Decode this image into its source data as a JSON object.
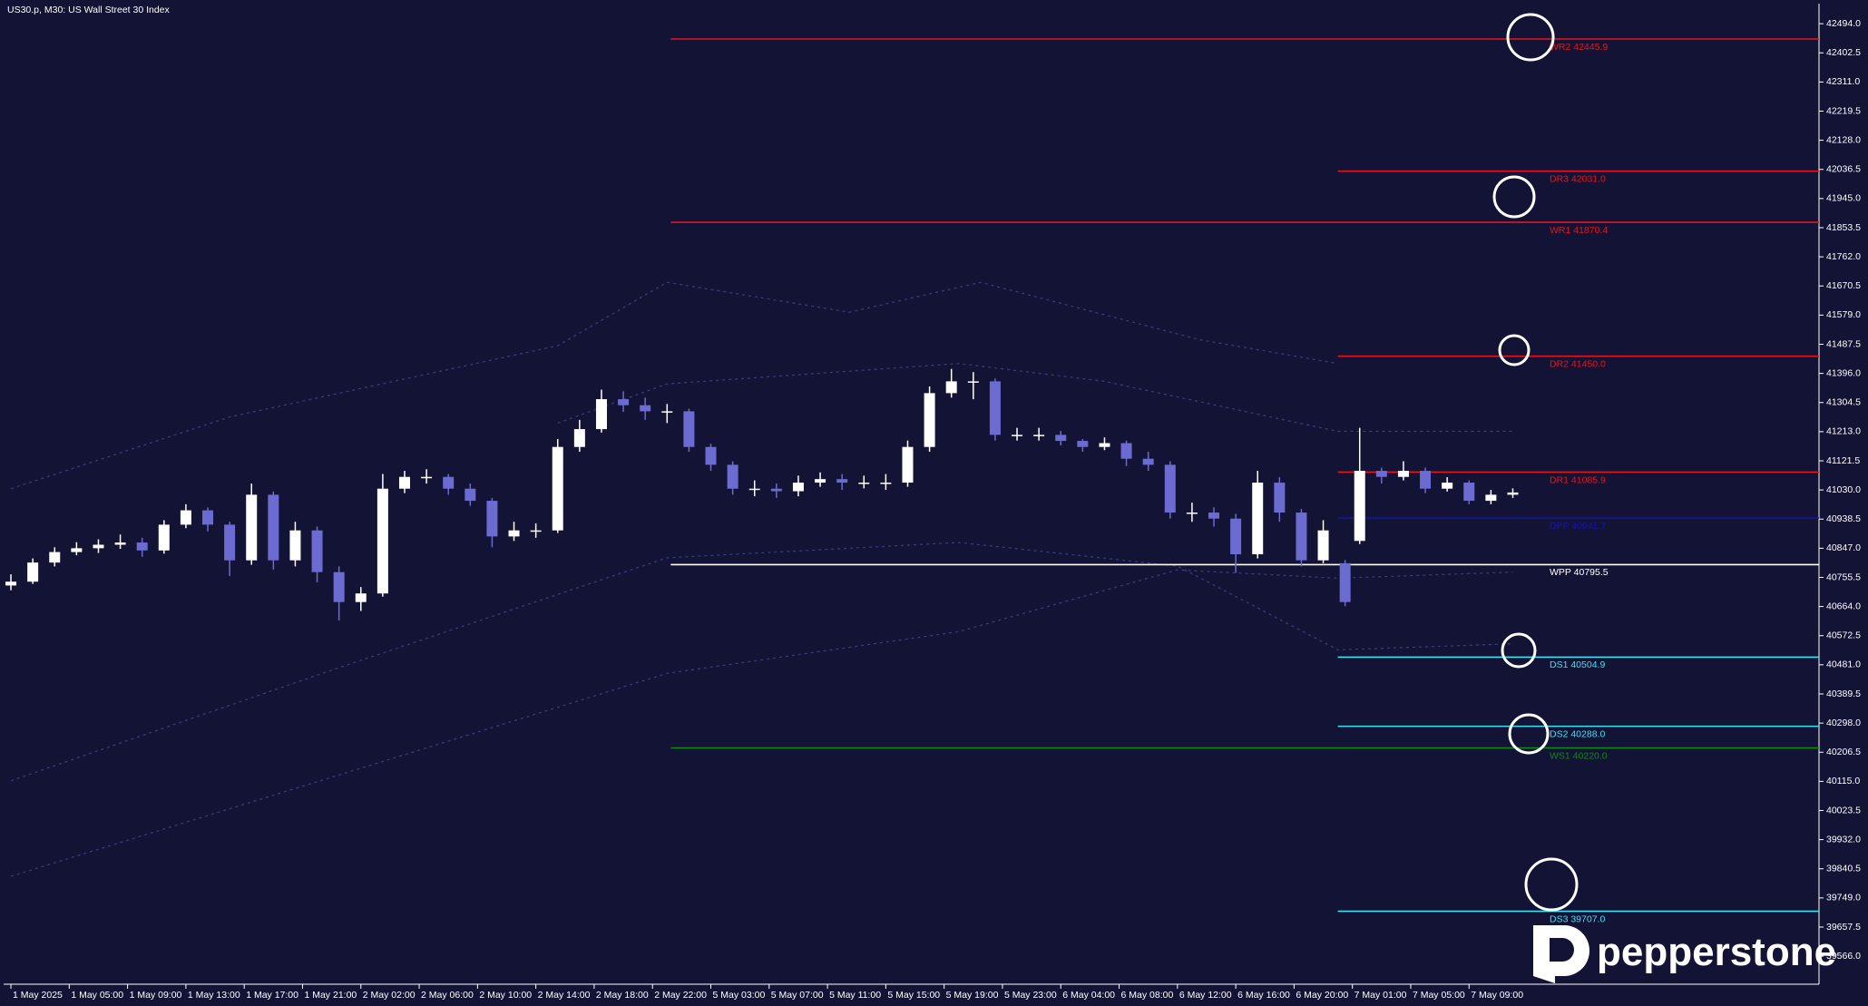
{
  "chart_data": {
    "type": "candlestick",
    "title": "US30.p, M30:  US Wall Street 30 Index",
    "x": [
      0,
      3,
      6,
      9,
      12,
      15,
      18,
      21,
      24,
      27,
      30,
      33,
      36,
      39,
      42,
      45,
      48,
      51,
      54,
      57,
      60,
      63,
      66,
      69,
      72,
      75,
      78,
      81,
      84,
      87,
      90,
      93,
      96,
      99,
      102,
      105,
      108,
      111,
      114,
      117,
      120,
      123,
      126,
      129,
      132,
      135,
      138,
      141,
      144,
      147,
      150,
      153,
      156,
      159,
      162,
      165,
      168,
      171,
      174,
      177,
      180,
      183,
      185,
      188,
      191,
      194,
      197,
      200,
      203,
      206
    ],
    "open": [
      40730,
      40742,
      40802,
      40835,
      40847,
      40858,
      40865,
      40840,
      40921,
      40966,
      40921,
      40809,
      41015,
      40809,
      40903,
      40772,
      40678,
      40705,
      41034,
      41071,
      41071,
      41034,
      40996,
      40884,
      40903,
      40903,
      41165,
      41221,
      41315,
      41296,
      41277,
      41277,
      41165,
      41109,
      41034,
      41034,
      41026,
      41053,
      41064,
      41053,
      41053,
      41053,
      41165,
      41334,
      41371,
      41371,
      41203,
      41203,
      41203,
      41184,
      41165,
      41177,
      41128,
      41109,
      40959,
      40959,
      40940,
      40828,
      41053,
      40959,
      40809,
      40800,
      40870,
      41090,
      41071,
      41090,
      41034,
      41053,
      40996,
      41015
    ],
    "high": [
      40765,
      40815,
      40850,
      40866,
      40875,
      40890,
      40880,
      40935,
      40985,
      40975,
      40930,
      41050,
      41025,
      40930,
      40915,
      40790,
      40725,
      41080,
      41090,
      41095,
      41080,
      41050,
      41005,
      40930,
      40925,
      41190,
      41250,
      41345,
      41340,
      41320,
      41300,
      41285,
      41175,
      41120,
      41060,
      41050,
      41075,
      41085,
      41080,
      41075,
      41080,
      41185,
      41355,
      41410,
      41400,
      41380,
      41225,
      41225,
      41215,
      41190,
      41195,
      41185,
      41150,
      41120,
      40990,
      40975,
      40955,
      41090,
      41070,
      40970,
      40935,
      40810,
      41225,
      41100,
      41120,
      41100,
      41070,
      41060,
      41030,
      41035
    ],
    "low": [
      40715,
      40735,
      40790,
      40825,
      40832,
      40845,
      40820,
      40830,
      40910,
      40900,
      40760,
      40795,
      40780,
      40790,
      40740,
      40620,
      40650,
      40695,
      41020,
      41050,
      41015,
      40980,
      40850,
      40870,
      40880,
      40895,
      41150,
      41210,
      41275,
      41250,
      41240,
      41150,
      41090,
      41015,
      41010,
      41005,
      41010,
      41040,
      41030,
      41035,
      41030,
      41040,
      41150,
      41320,
      41315,
      41185,
      41185,
      41185,
      41170,
      41150,
      41155,
      41105,
      41090,
      40940,
      40930,
      40915,
      40770,
      40815,
      40930,
      40790,
      40800,
      40665,
      40860,
      41050,
      41060,
      41020,
      41025,
      40985,
      40985,
      41005
    ],
    "close": [
      40742,
      40802,
      40835,
      40847,
      40858,
      40865,
      40840,
      40921,
      40966,
      40921,
      40809,
      41015,
      40809,
      40903,
      40772,
      40678,
      40705,
      41034,
      41071,
      41071,
      41034,
      40996,
      40884,
      40903,
      40903,
      41165,
      41221,
      41315,
      41296,
      41277,
      41277,
      41165,
      41109,
      41034,
      41034,
      41026,
      41053,
      41064,
      41053,
      41053,
      41053,
      41165,
      41334,
      41371,
      41371,
      41203,
      41203,
      41203,
      41184,
      41165,
      41177,
      41128,
      41109,
      40959,
      40959,
      40940,
      40828,
      41053,
      40959,
      40809,
      40903,
      40678,
      41090,
      41071,
      41090,
      41034,
      41053,
      40996,
      41015,
      41022
    ],
    "up_color": "#ffffff",
    "down_color": "#6b6bd1",
    "xlim": [
      -1,
      248
    ],
    "ylim": [
      39478,
      42557
    ],
    "grid": false,
    "xticks": [
      {
        "value": 0,
        "label": "1 May 2025"
      },
      {
        "value": 8,
        "label": "1 May 05:00"
      },
      {
        "value": 16,
        "label": "1 May 09:00"
      },
      {
        "value": 24,
        "label": "1 May 13:00"
      },
      {
        "value": 32,
        "label": "1 May 17:00"
      },
      {
        "value": 40,
        "label": "1 May 21:00"
      },
      {
        "value": 48,
        "label": "2 May 02:00"
      },
      {
        "value": 56,
        "label": "2 May 06:00"
      },
      {
        "value": 64,
        "label": "2 May 10:00"
      },
      {
        "value": 72,
        "label": "2 May 14:00"
      },
      {
        "value": 80,
        "label": "2 May 18:00"
      },
      {
        "value": 88,
        "label": "2 May 22:00"
      },
      {
        "value": 96,
        "label": "5 May 03:00"
      },
      {
        "value": 104,
        "label": "5 May 07:00"
      },
      {
        "value": 112,
        "label": "5 May 11:00"
      },
      {
        "value": 120,
        "label": "5 May 15:00"
      },
      {
        "value": 128,
        "label": "5 May 19:00"
      },
      {
        "value": 136,
        "label": "5 May 23:00"
      },
      {
        "value": 144,
        "label": "6 May 04:00"
      },
      {
        "value": 152,
        "label": "6 May 08:00"
      },
      {
        "value": 160,
        "label": "6 May 12:00"
      },
      {
        "value": 168,
        "label": "6 May 16:00"
      },
      {
        "value": 176,
        "label": "6 May 20:00"
      },
      {
        "value": 184,
        "label": "7 May 01:00"
      },
      {
        "value": 192,
        "label": "7 May 05:00"
      },
      {
        "value": 200,
        "label": "7 May 09:00"
      }
    ],
    "yticks": [
      {
        "value": 42494,
        "label": "42494.0"
      },
      {
        "value": 42402.5,
        "label": "42402.5"
      },
      {
        "value": 42311,
        "label": "42311.0"
      },
      {
        "value": 42219.5,
        "label": "42219.5"
      },
      {
        "value": 42128,
        "label": "42128.0"
      },
      {
        "value": 42036.5,
        "label": "42036.5"
      },
      {
        "value": 41945,
        "label": "41945.0"
      },
      {
        "value": 41853.5,
        "label": "41853.5"
      },
      {
        "value": 41762,
        "label": "41762.0"
      },
      {
        "value": 41670.5,
        "label": "41670.5"
      },
      {
        "value": 41579,
        "label": "41579.0"
      },
      {
        "value": 41487.5,
        "label": "41487.5"
      },
      {
        "value": 41396,
        "label": "41396.0"
      },
      {
        "value": 41304.5,
        "label": "41304.5"
      },
      {
        "value": 41213,
        "label": "41213.0"
      },
      {
        "value": 41121.5,
        "label": "41121.5"
      },
      {
        "value": 41030,
        "label": "41030.0"
      },
      {
        "value": 40938.5,
        "label": "40938.5"
      },
      {
        "value": 40847,
        "label": "40847.0"
      },
      {
        "value": 40755.5,
        "label": "40755.5"
      },
      {
        "value": 40664,
        "label": "40664.0"
      },
      {
        "value": 40572.5,
        "label": "40572.5"
      },
      {
        "value": 40481,
        "label": "40481.0"
      },
      {
        "value": 40389.5,
        "label": "40389.5"
      },
      {
        "value": 40298,
        "label": "40298.0"
      },
      {
        "value": 40206.5,
        "label": "40206.5"
      },
      {
        "value": 40115,
        "label": "40115.0"
      },
      {
        "value": 40023.5,
        "label": "40023.5"
      },
      {
        "value": 39932,
        "label": "39932.0"
      },
      {
        "value": 39840.5,
        "label": "39840.5"
      },
      {
        "value": 39749,
        "label": "39749.0"
      },
      {
        "value": 39657.5,
        "label": "39657.5"
      },
      {
        "value": 39566,
        "label": "39566.0"
      }
    ],
    "bands": [
      {
        "color": "#3e3e7e",
        "x": [
          0,
          30,
          75,
          90,
          115,
          133,
          163,
          182
        ],
        "values": [
          41034,
          41259,
          41483,
          41682,
          41588,
          41682,
          41502,
          41427
        ]
      },
      {
        "color": "#3e3e7e",
        "x": [
          75,
          90,
          130,
          150,
          182,
          206
        ],
        "values": [
          41240,
          41363,
          41427,
          41371,
          41214,
          41214
        ]
      },
      {
        "color": "#3e3e7e",
        "x": [
          0,
          45,
          90,
          130,
          160,
          182,
          206
        ],
        "values": [
          40117,
          40472,
          40817,
          40865,
          40791,
          40528,
          40547
        ]
      },
      {
        "color": "#3e3e7e",
        "x": [
          0,
          45,
          90,
          130,
          160,
          182,
          206
        ],
        "values": [
          39817,
          40135,
          40454,
          40585,
          40779,
          40753,
          40772
        ]
      }
    ],
    "levels": [
      {
        "label": "WR2 42445.9",
        "value": 42445.9,
        "x_start": 90.5,
        "color": "#e3161e"
      },
      {
        "label": "DR3 42031.0",
        "value": 42031.0,
        "x_start": 182,
        "color": "#e3161e"
      },
      {
        "label": "WR1 41870.4",
        "value": 41870.4,
        "x_start": 90.5,
        "color": "#e3161e"
      },
      {
        "label": "DR2 41450.0",
        "value": 41450.0,
        "x_start": 182,
        "color": "#e3161e"
      },
      {
        "label": "DR1 41085.9",
        "value": 41085.9,
        "x_start": 182,
        "color": "#e3161e"
      },
      {
        "label": "DPP 40941.7",
        "value": 40941.7,
        "x_start": 182,
        "color": "#1414b4"
      },
      {
        "label": "WPP 40795.5",
        "value": 40795.5,
        "x_start": 90.5,
        "color": "#ffffff"
      },
      {
        "label": "DS1 40504.9",
        "value": 40504.9,
        "x_start": 182,
        "color": "#3fe0f0"
      },
      {
        "label": "DS2 40288.0",
        "value": 40288.0,
        "x_start": 182,
        "color": "#3fe0f0"
      },
      {
        "label": "WS1 40220.0",
        "value": 40220.0,
        "x_start": 90.5,
        "color": "#0c8a18"
      },
      {
        "label": "DS3 39707.0",
        "value": 39707.0,
        "x_start": 182,
        "color": "#3fe0f0"
      }
    ]
  },
  "brand": {
    "text": "pepperstone"
  }
}
